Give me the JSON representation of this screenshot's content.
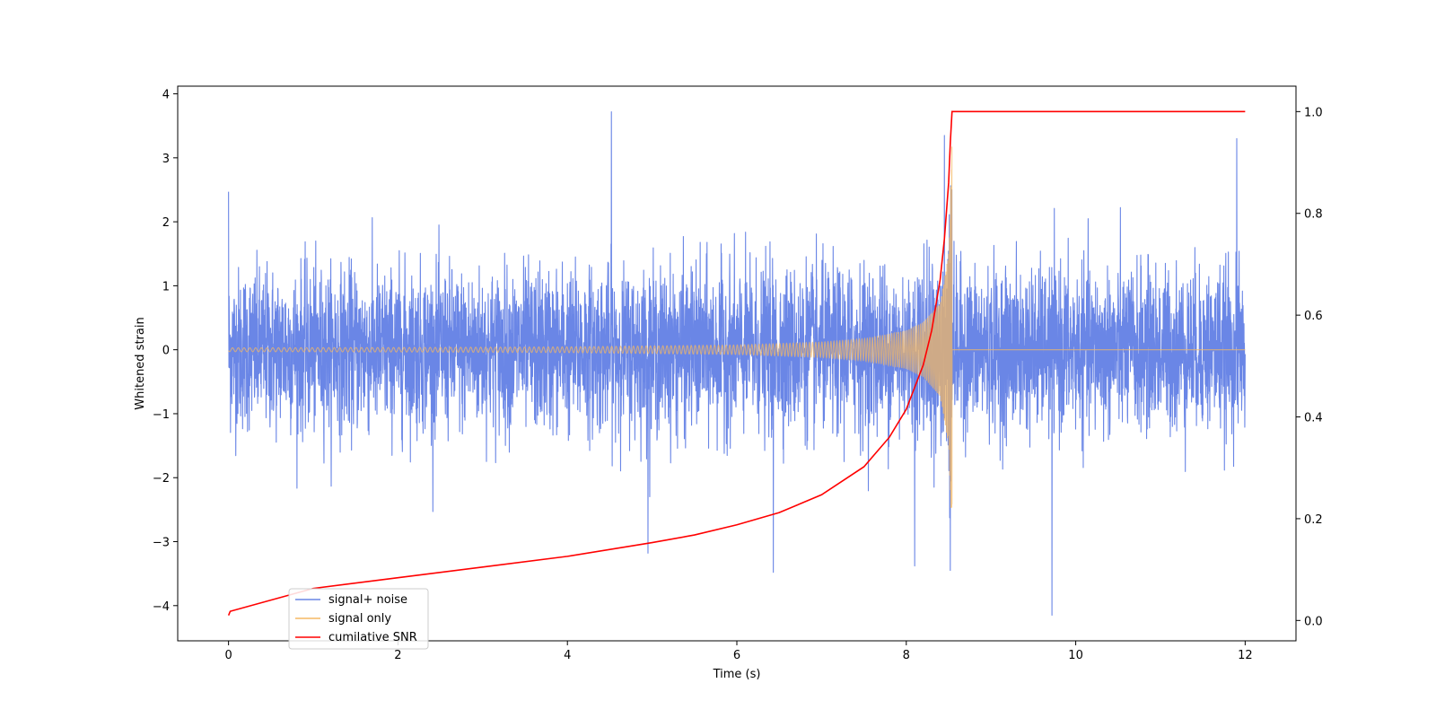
{
  "chart_data": {
    "type": "line",
    "title": "",
    "xlabel": "Time (s)",
    "ylabel": "Whitened strain",
    "y2label": "",
    "xlim": [
      -0.6,
      12.6
    ],
    "ylim": [
      -4.55,
      4.12
    ],
    "y2lim": [
      -0.04,
      1.05
    ],
    "xticks": [
      0,
      2,
      4,
      6,
      8,
      10,
      12
    ],
    "xtick_labels": [
      "0",
      "2",
      "4",
      "6",
      "8",
      "10",
      "12"
    ],
    "yticks": [
      -4,
      -3,
      -2,
      -1,
      0,
      1,
      2,
      3,
      4
    ],
    "ytick_labels": [
      "−4",
      "−3",
      "−2",
      "−1",
      "0",
      "1",
      "2",
      "3",
      "4"
    ],
    "y2ticks": [
      0.0,
      0.2,
      0.4,
      0.6,
      0.8,
      1.0
    ],
    "y2tick_labels": [
      "0.0",
      "0.2",
      "0.4",
      "0.6",
      "0.8",
      "1.0"
    ],
    "grid": false,
    "legend_position": "lower-left",
    "legend": [
      "signal+ noise",
      "signal only",
      "cumilative SNR"
    ],
    "series": [
      {
        "name": "signal+ noise",
        "color": "#6a86e6",
        "axis": "left",
        "t_range": [
          0,
          12
        ],
        "amplitude_band": [
          -1.3,
          1.5
        ],
        "notable_peaks": [
          {
            "x": 0.0,
            "y": 2.47
          },
          {
            "x": 4.52,
            "y": 3.72
          },
          {
            "x": 8.45,
            "y": 3.35
          },
          {
            "x": 11.9,
            "y": 3.3
          },
          {
            "x": 4.95,
            "y": -3.18
          },
          {
            "x": 6.43,
            "y": -3.48
          },
          {
            "x": 8.1,
            "y": -3.38
          },
          {
            "x": 8.52,
            "y": -3.45
          },
          {
            "x": 9.72,
            "y": -4.15
          }
        ]
      },
      {
        "name": "signal only",
        "color": "#f5b963",
        "axis": "left",
        "merger_time": 8.54,
        "envelope": [
          {
            "x": 0.0,
            "y": 0.03
          },
          {
            "x": 2.0,
            "y": 0.035
          },
          {
            "x": 4.0,
            "y": 0.045
          },
          {
            "x": 6.0,
            "y": 0.075
          },
          {
            "x": 7.0,
            "y": 0.12
          },
          {
            "x": 7.5,
            "y": 0.17
          },
          {
            "x": 8.0,
            "y": 0.3
          },
          {
            "x": 8.2,
            "y": 0.43
          },
          {
            "x": 8.4,
            "y": 0.73
          },
          {
            "x": 8.5,
            "y": 1.5
          },
          {
            "x": 8.54,
            "y": 3.3
          }
        ]
      },
      {
        "name": "cumilative SNR",
        "color": "#ff0000",
        "axis": "right",
        "x": [
          0.0,
          0.02,
          1.0,
          2.0,
          3.0,
          4.0,
          5.0,
          5.5,
          6.0,
          6.5,
          7.0,
          7.5,
          7.8,
          8.0,
          8.2,
          8.3,
          8.4,
          8.45,
          8.5,
          8.52,
          8.54,
          9.0,
          10.0,
          11.0,
          12.0
        ],
        "values": [
          0.01,
          0.018,
          0.063,
          0.084,
          0.105,
          0.126,
          0.153,
          0.168,
          0.188,
          0.212,
          0.247,
          0.302,
          0.36,
          0.415,
          0.502,
          0.57,
          0.67,
          0.75,
          0.86,
          0.94,
          1.0,
          1.0,
          1.0,
          1.0,
          1.0
        ]
      }
    ]
  }
}
